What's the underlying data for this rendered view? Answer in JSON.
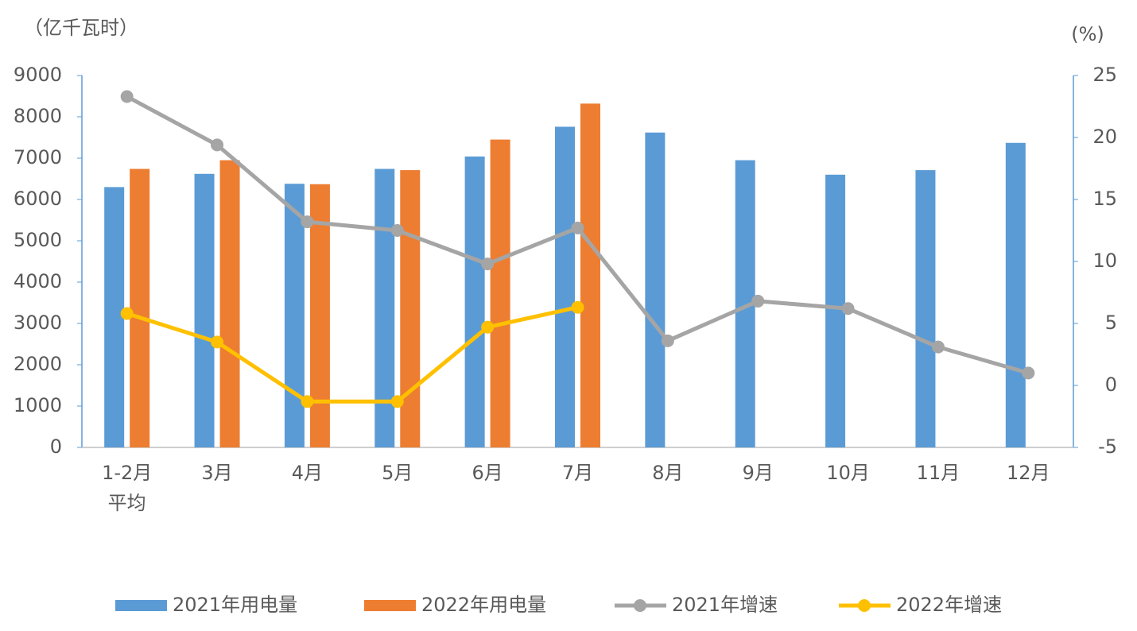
{
  "chart_data": {
    "type": "bar-line",
    "y_unit": "（亿千瓦时）",
    "y2_unit": "(%)",
    "categories": [
      "1-2月\n平均",
      "3月",
      "4月",
      "5月",
      "6月",
      "7月",
      "8月",
      "9月",
      "10月",
      "11月",
      "12月"
    ],
    "series": [
      {
        "name": "2021年用电量",
        "type": "bar",
        "color": "#5b9bd5",
        "values": [
          6300,
          6620,
          6380,
          6740,
          7040,
          7760,
          7620,
          6950,
          6600,
          6710,
          7370
        ]
      },
      {
        "name": "2022年用电量",
        "type": "bar",
        "color": "#ed7d31",
        "values": [
          6740,
          6950,
          6370,
          6710,
          7450,
          8320,
          null,
          null,
          null,
          null,
          null
        ]
      },
      {
        "name": "2021年增速",
        "type": "line",
        "axis": "y2",
        "color": "#a5a5a5",
        "values": [
          23.3,
          19.4,
          13.2,
          12.5,
          9.8,
          12.7,
          3.6,
          6.8,
          6.2,
          3.1,
          1.0
        ]
      },
      {
        "name": "2022年增速",
        "type": "line",
        "axis": "y2",
        "color": "#ffc000",
        "values": [
          5.8,
          3.5,
          -1.3,
          -1.3,
          4.7,
          6.3,
          null,
          null,
          null,
          null,
          null
        ]
      }
    ],
    "ylim": [
      0,
      9000
    ],
    "yticks": [
      0,
      1000,
      2000,
      3000,
      4000,
      5000,
      6000,
      7000,
      8000,
      9000
    ],
    "y2lim": [
      -5,
      25
    ],
    "y2ticks": [
      -5,
      0,
      5,
      10,
      15,
      20,
      25
    ]
  }
}
